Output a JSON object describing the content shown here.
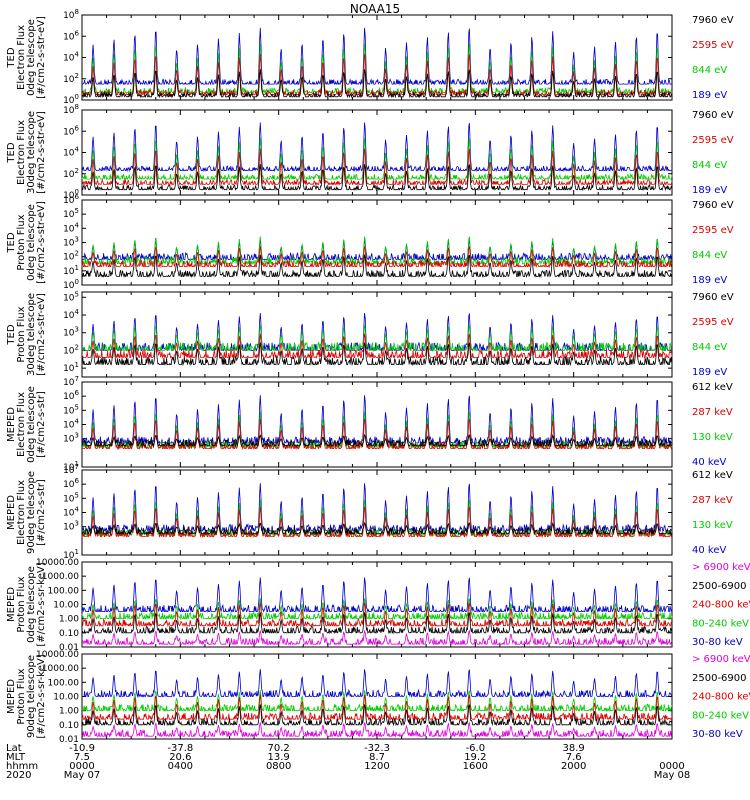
{
  "title": "NOAA15",
  "chart_data": [
    {
      "type": "line",
      "ylabel": [
        "TED",
        "Electron Flux",
        "0deg telescope",
        "[#/cm2-s-str-eV]"
      ],
      "y_ticks": [
        "10^0",
        "10^2",
        "10^4",
        "10^6",
        "10^8"
      ],
      "log_range": [
        0,
        8
      ],
      "channels": [
        {
          "name": "7960 eV",
          "color": "#000000"
        },
        {
          "name": "2595 eV",
          "color": "#dd0000"
        },
        {
          "name": "844 eV",
          "color": "#00cc00"
        },
        {
          "name": "189 eV",
          "color": "#0000cc"
        }
      ],
      "series": [
        {
          "name": "189 eV",
          "base_log": 1.5,
          "peak_log": 7
        },
        {
          "name": "844 eV",
          "base_log": 0.7,
          "peak_log": 5.5
        },
        {
          "name": "2595 eV",
          "base_log": 0.5,
          "peak_log": 4.5
        },
        {
          "name": "7960 eV",
          "base_log": 0.3,
          "peak_log": 3
        }
      ]
    },
    {
      "type": "line",
      "ylabel": [
        "TED",
        "Electron Flux",
        "30deg telescope",
        "[#/cm2-s-str-eV]"
      ],
      "y_ticks": [
        "10^0",
        "10^2",
        "10^4",
        "10^6",
        "10^8"
      ],
      "log_range": [
        0,
        8
      ],
      "channels": [
        {
          "name": "7960 eV",
          "color": "#000000"
        },
        {
          "name": "2595 eV",
          "color": "#dd0000"
        },
        {
          "name": "844 eV",
          "color": "#00cc00"
        },
        {
          "name": "189 eV",
          "color": "#0000cc"
        }
      ],
      "series": [
        {
          "name": "189 eV",
          "base_log": 2.3,
          "peak_log": 7
        },
        {
          "name": "844 eV",
          "base_log": 1.5,
          "peak_log": 5.5
        },
        {
          "name": "2595 eV",
          "base_log": 1,
          "peak_log": 4.5
        },
        {
          "name": "7960 eV",
          "base_log": 0.5,
          "peak_log": 3
        }
      ]
    },
    {
      "type": "line",
      "ylabel": [
        "TED",
        "Proton Flux",
        "0deg telescope",
        "[#/cm2-s-str-eV]"
      ],
      "y_ticks": [
        "10^0",
        "10^1",
        "10^2",
        "10^3",
        "10^4",
        "10^5",
        "10^6"
      ],
      "log_range": [
        0,
        6
      ],
      "channels": [
        {
          "name": "7960 eV",
          "color": "#000000"
        },
        {
          "name": "2595 eV",
          "color": "#dd0000"
        },
        {
          "name": "844 eV",
          "color": "#00cc00"
        },
        {
          "name": "189 eV",
          "color": "#0000cc"
        }
      ],
      "series": [
        {
          "name": "189 eV",
          "base_log": 1.8,
          "peak_log": 3.2
        },
        {
          "name": "844 eV",
          "base_log": 1.5,
          "peak_log": 3.5
        },
        {
          "name": "2595 eV",
          "base_log": 1.3,
          "peak_log": 2.8
        },
        {
          "name": "7960 eV",
          "base_log": 0.6,
          "peak_log": 2.2
        }
      ]
    },
    {
      "type": "line",
      "ylabel": [
        "TED",
        "Proton Flux",
        "30deg telescope",
        "[#/cm2-s-str-eV]"
      ],
      "y_ticks": [
        "10^1",
        "10^2",
        "10^3",
        "10^4",
        "10^5"
      ],
      "log_range": [
        0.5,
        5.3
      ],
      "channels": [
        {
          "name": "7960 eV",
          "color": "#000000"
        },
        {
          "name": "2595 eV",
          "color": "#dd0000"
        },
        {
          "name": "844 eV",
          "color": "#00cc00"
        },
        {
          "name": "189 eV",
          "color": "#0000cc"
        }
      ],
      "series": [
        {
          "name": "189 eV",
          "base_log": 2,
          "peak_log": 4.2
        },
        {
          "name": "844 eV",
          "base_log": 2,
          "peak_log": 3.5
        },
        {
          "name": "2595 eV",
          "base_log": 1.6,
          "peak_log": 3
        },
        {
          "name": "7960 eV",
          "base_log": 1.2,
          "peak_log": 2.5
        }
      ]
    },
    {
      "type": "line",
      "ylabel": [
        "MEPED",
        "Electron Flux",
        "0deg telescope",
        "[#/cm2-s-str]"
      ],
      "y_ticks": [
        "10^1",
        "10^3",
        "10^4",
        "10^5",
        "10^6",
        "10^7"
      ],
      "log_range": [
        1,
        7
      ],
      "channels": [
        {
          "name": "612 keV",
          "color": "#000000"
        },
        {
          "name": "287 keV",
          "color": "#dd0000"
        },
        {
          "name": "130 keV",
          "color": "#00cc00"
        },
        {
          "name": "40 keV",
          "color": "#0000cc"
        }
      ],
      "series": [
        {
          "name": "40 keV",
          "base_log": 2.7,
          "peak_log": 6.2
        },
        {
          "name": "130 keV",
          "base_log": 2.4,
          "peak_log": 5
        },
        {
          "name": "287 keV",
          "base_log": 2.3,
          "peak_log": 4.5
        },
        {
          "name": "612 keV",
          "base_log": 2.5,
          "peak_log": 3.3
        }
      ]
    },
    {
      "type": "line",
      "ylabel": [
        "MEPED",
        "Electron Flux",
        "90deg telescope",
        "[#/cm2-s-str]"
      ],
      "y_ticks": [
        "10^1",
        "10^3",
        "10^4",
        "10^5",
        "10^6",
        "10^7"
      ],
      "log_range": [
        1,
        7
      ],
      "channels": [
        {
          "name": "612 keV",
          "color": "#000000"
        },
        {
          "name": "287 keV",
          "color": "#dd0000"
        },
        {
          "name": "130 keV",
          "color": "#00cc00"
        },
        {
          "name": "40 keV",
          "color": "#0000cc"
        }
      ],
      "series": [
        {
          "name": "40 keV",
          "base_log": 2.7,
          "peak_log": 6.2
        },
        {
          "name": "130 keV",
          "base_log": 2.4,
          "peak_log": 5
        },
        {
          "name": "287 keV",
          "base_log": 2.3,
          "peak_log": 4.5
        },
        {
          "name": "612 keV",
          "base_log": 2.5,
          "peak_log": 3.3
        }
      ]
    },
    {
      "type": "line",
      "ylabel": [
        "MEPED",
        "Proton Flux",
        "0deg telescope",
        "[#/cm2-s-sr-keV]"
      ],
      "y_ticks": [
        "0.01",
        "0.10",
        "1.00",
        "10.00",
        "100.00",
        "1000.00",
        "10000.00"
      ],
      "log_range": [
        -2,
        4
      ],
      "channels": [
        {
          "name": "> 6900 keV",
          "color": "#dd00dd"
        },
        {
          "name": "2500-6900",
          "color": "#000000"
        },
        {
          "name": "240-800 keV",
          "color": "#dd0000"
        },
        {
          "name": "80-240 keV",
          "color": "#00cc00"
        },
        {
          "name": "30-80 keV",
          "color": "#0000cc"
        }
      ],
      "series": [
        {
          "name": "30-80 keV",
          "base_log": 0.5,
          "peak_log": 3
        },
        {
          "name": "80-240 keV",
          "base_log": 0,
          "peak_log": 1.5
        },
        {
          "name": "240-800 keV",
          "base_log": -0.5,
          "peak_log": 1.2
        },
        {
          "name": "2500-6900",
          "base_log": -1,
          "peak_log": 0.5
        },
        {
          "name": "> 6900 keV",
          "base_log": -1.8,
          "peak_log": -0.8
        }
      ]
    },
    {
      "type": "line",
      "ylabel": [
        "MEPED",
        "Proton Flux",
        "90deg telescope",
        "[#/cm2-s-sr-keV]"
      ],
      "y_ticks": [
        "0.01",
        "0.10",
        "1.00",
        "10.00",
        "100.00",
        "1000.00",
        "10000.00"
      ],
      "log_range": [
        -2,
        4
      ],
      "channels": [
        {
          "name": "> 6900 keV",
          "color": "#dd00dd"
        },
        {
          "name": "2500-6900",
          "color": "#000000"
        },
        {
          "name": "240-800 keV",
          "color": "#dd0000"
        },
        {
          "name": "80-240 keV",
          "color": "#00cc00"
        },
        {
          "name": "30-80 keV",
          "color": "#0000cc"
        }
      ],
      "series": [
        {
          "name": "30-80 keV",
          "base_log": 1,
          "peak_log": 3
        },
        {
          "name": "80-240 keV",
          "base_log": 0,
          "peak_log": 1.5
        },
        {
          "name": "240-800 keV",
          "base_log": -0.6,
          "peak_log": 1.2
        },
        {
          "name": "2500-6900",
          "base_log": -1,
          "peak_log": 0.5
        },
        {
          "name": "> 6900 keV",
          "base_log": -1.8,
          "peak_log": -0.8
        }
      ]
    }
  ],
  "x_axis": {
    "row_labels": [
      "Lat",
      "MLT",
      "hhmm",
      "2020"
    ],
    "columns": [
      {
        "lat": "-10.9",
        "mlt": "7.5",
        "hhmm": "0000",
        "date": "May 07"
      },
      {
        "lat": "-37.8",
        "mlt": "20.6",
        "hhmm": "0400",
        "date": ""
      },
      {
        "lat": "70.2",
        "mlt": "13.9",
        "hhmm": "0800",
        "date": ""
      },
      {
        "lat": "-32.3",
        "mlt": "8.7",
        "hhmm": "1200",
        "date": ""
      },
      {
        "lat": "-6.0",
        "mlt": "19.2",
        "hhmm": "1600",
        "date": ""
      },
      {
        "lat": "38.9",
        "mlt": "7.6",
        "hhmm": "2000",
        "date": ""
      },
      {
        "lat": "",
        "mlt": "",
        "hhmm": "0000",
        "date": "May 08"
      }
    ],
    "range_hours": [
      0,
      24
    ]
  }
}
